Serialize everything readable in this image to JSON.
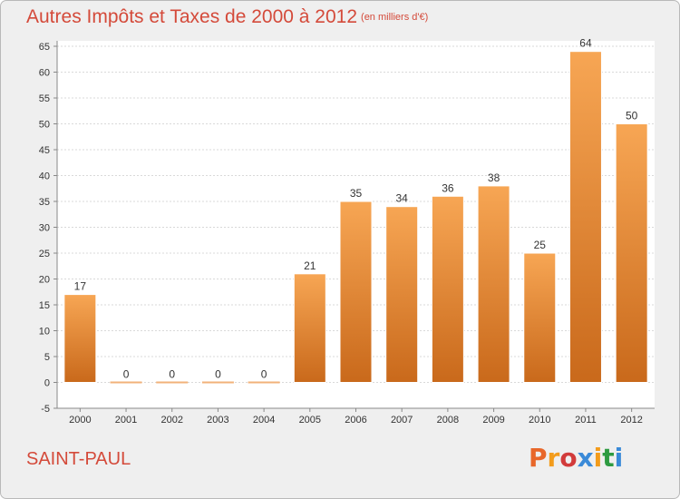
{
  "header": {
    "title": "Autres Impôts et Taxes de 2000 à 2012",
    "unit": "(en milliers d'€)"
  },
  "footer": {
    "commune": "SAINT-PAUL",
    "logo": "Proxiti"
  },
  "colors": {
    "accent": "#d44a3a",
    "bar_top": "#f7a654",
    "bar_bottom": "#c9691b",
    "zero_bar": "#f2b27a",
    "logo_letters": [
      "#e8672a",
      "#f39c1c",
      "#d23b3b",
      "#3a8ad8",
      "#f39c1c",
      "#2e9b41",
      "#3a8ad8"
    ]
  },
  "chart_data": {
    "type": "bar",
    "categories": [
      "2000",
      "2001",
      "2002",
      "2003",
      "2004",
      "2005",
      "2006",
      "2007",
      "2008",
      "2009",
      "2010",
      "2011",
      "2012"
    ],
    "values": [
      17,
      0,
      0,
      0,
      0,
      21,
      35,
      34,
      36,
      38,
      25,
      64,
      50
    ],
    "title": "Autres Impôts et Taxes de 2000 à 2012",
    "ylabel": "",
    "xlabel": "",
    "ylim": [
      -5,
      65
    ],
    "yticks": [
      -5,
      0,
      5,
      10,
      15,
      20,
      25,
      30,
      35,
      40,
      45,
      50,
      55,
      60,
      65
    ],
    "grid": true,
    "data_labels": true
  }
}
